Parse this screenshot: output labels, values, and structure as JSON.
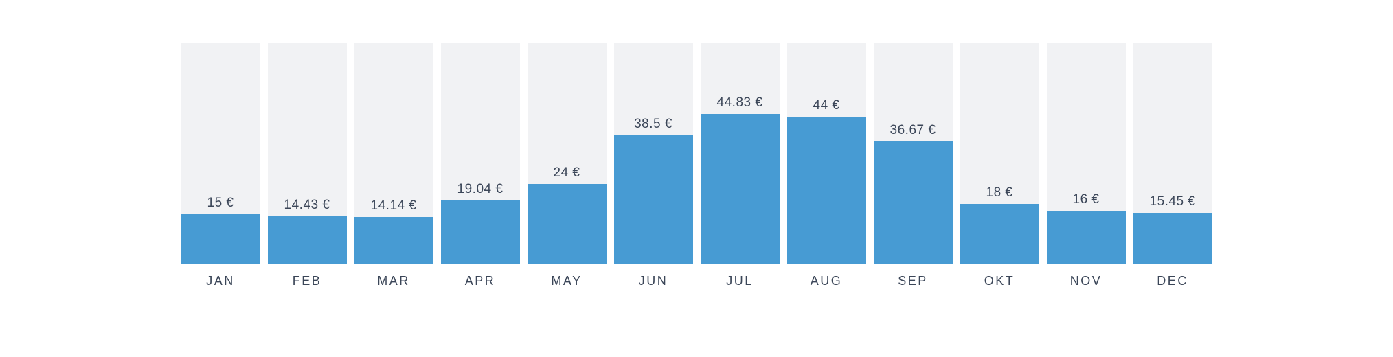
{
  "chart": {
    "background_color": "#ffffff",
    "bar_color": "#479BD3",
    "track_color": "#F1F2F4",
    "text_color": "#3B4658"
  },
  "chart_data": {
    "type": "bar",
    "title": "",
    "xlabel": "",
    "ylabel": "",
    "categories": [
      "JAN",
      "FEB",
      "MAR",
      "APR",
      "MAY",
      "JUN",
      "JUL",
      "AUG",
      "SEP",
      "OKT",
      "NOV",
      "DEC"
    ],
    "values": [
      15,
      14.43,
      14.14,
      19.04,
      24,
      38.5,
      44.83,
      44,
      36.67,
      18,
      16,
      15.45
    ],
    "value_labels": [
      "15 €",
      "14.43 €",
      "14.14 €",
      "19.04 €",
      "24 €",
      "38.5 €",
      "44.83 €",
      "44 €",
      "36.67 €",
      "18 €",
      "16 €",
      "15.45 €"
    ],
    "currency": "€",
    "ylim": [
      0,
      66
    ],
    "grid": false,
    "legend": false,
    "track_full_height": true
  }
}
